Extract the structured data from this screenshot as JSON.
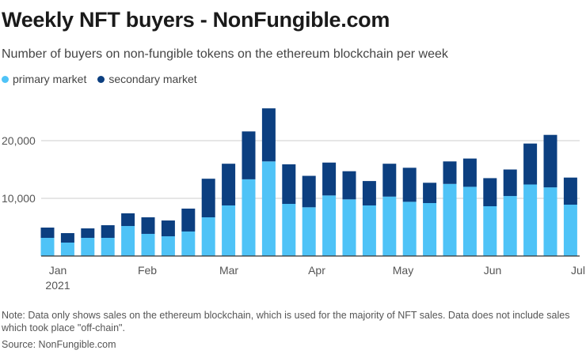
{
  "title": "Weekly NFT buyers - NonFungible.com",
  "subtitle": "Number of buyers on non-fungible tokens on the ethereum blockchain per week",
  "note": "Note: Data only shows sales on the ethereum blockchain, which is used for the majority of NFT sales. Data does not include sales which took place \"off-chain\".",
  "source": "Source: NonFungible.com",
  "chart_data": {
    "type": "bar",
    "stacked": true,
    "title": "Weekly NFT buyers - NonFungible.com",
    "xlabel": "",
    "ylabel": "",
    "ylim": [
      0,
      26000
    ],
    "yticks": [
      10000,
      20000
    ],
    "ytick_labels": [
      "10,000",
      "20,000"
    ],
    "xtick_labels": [
      "Jan",
      "Feb",
      "Mar",
      "Apr",
      "May",
      "Jun",
      "Jul"
    ],
    "xtick_year": "2021",
    "grid": true,
    "legend": "top-left",
    "colors": {
      "primary": "#4fc3f7",
      "secondary": "#0c3f80"
    },
    "series": [
      {
        "name": "primary market",
        "values": [
          3150,
          2330,
          3150,
          3150,
          5200,
          3840,
          3420,
          4250,
          6710,
          8770,
          13300,
          16400,
          9040,
          8450,
          10500,
          9820,
          8770,
          10300,
          9400,
          9180,
          12500,
          12000,
          8630,
          10400,
          12400,
          11900,
          8900
        ]
      },
      {
        "name": "secondary market",
        "values": [
          1780,
          1640,
          1640,
          2190,
          2200,
          2870,
          2740,
          3970,
          6690,
          7230,
          8300,
          9200,
          6860,
          5450,
          5700,
          4880,
          4230,
          5700,
          5900,
          3520,
          3900,
          4900,
          4870,
          4600,
          7100,
          9100,
          4700
        ]
      }
    ]
  }
}
